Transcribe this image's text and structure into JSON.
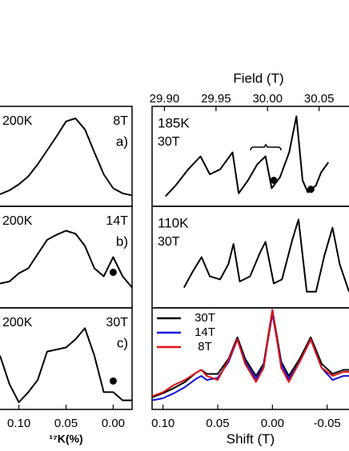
{
  "chart_data": [
    {
      "type": "line",
      "temperature": "200K",
      "field": "8T",
      "label": "a)",
      "color": "#000000",
      "x": [
        0.12,
        0.11,
        0.1,
        0.09,
        0.08,
        0.07,
        0.06,
        0.05,
        0.04,
        0.03,
        0.02,
        0.01,
        0.0,
        -0.01,
        -0.02
      ],
      "values": [
        0.12,
        0.16,
        0.22,
        0.3,
        0.42,
        0.56,
        0.7,
        0.85,
        0.88,
        0.77,
        0.54,
        0.32,
        0.18,
        0.13,
        0.11
      ],
      "xlim": [
        0.12,
        -0.02
      ],
      "ylim": [
        0,
        1
      ]
    },
    {
      "type": "line",
      "temperature": "200K",
      "field": "14T",
      "label": "b)",
      "color": "#000000",
      "x": [
        0.12,
        0.11,
        0.1,
        0.09,
        0.08,
        0.07,
        0.06,
        0.05,
        0.04,
        0.03,
        0.02,
        0.01,
        0.0,
        -0.01,
        -0.02
      ],
      "values": [
        0.24,
        0.26,
        0.34,
        0.39,
        0.53,
        0.67,
        0.72,
        0.76,
        0.73,
        0.61,
        0.39,
        0.31,
        0.5,
        0.31,
        0.2
      ],
      "markers": [
        {
          "x": 0.0,
          "y": 0.35
        }
      ],
      "xlim": [
        0.12,
        -0.02
      ],
      "ylim": [
        0,
        1
      ]
    },
    {
      "type": "line",
      "temperature": "200K",
      "field": "30T",
      "label": "c)",
      "color": "#000000",
      "x": [
        0.12,
        0.11,
        0.1,
        0.09,
        0.08,
        0.07,
        0.06,
        0.05,
        0.04,
        0.03,
        0.02,
        0.01,
        0.0,
        -0.01,
        -0.02
      ],
      "values": [
        0.53,
        0.25,
        0.07,
        0.17,
        0.29,
        0.57,
        0.59,
        0.61,
        0.69,
        0.8,
        0.53,
        0.17,
        0.17,
        0.09,
        0.09
      ],
      "markers": [
        {
          "x": 0.0,
          "y": 0.28
        }
      ],
      "xlim": [
        0.12,
        -0.02
      ],
      "ylim": [
        0,
        1
      ],
      "xticks": [
        {
          "value": 0.1,
          "label": "0.10"
        },
        0.05,
        {
          "value": 0,
          "label": "0.00"
        }
      ],
      "xlabel": "¹⁷K(%)"
    },
    {
      "type": "line",
      "temperature": "185K",
      "field": "30T",
      "color": "#000000",
      "x": [
        29.901,
        29.911,
        29.923,
        29.935,
        29.944,
        29.954,
        29.966,
        29.972,
        29.981,
        29.99,
        29.998,
        30.004,
        30.012,
        30.021,
        30.028,
        30.034,
        30.039,
        30.047,
        30.052,
        30.059
      ],
      "values": [
        0.1,
        0.21,
        0.37,
        0.5,
        0.32,
        0.37,
        0.54,
        0.13,
        0.26,
        0.42,
        0.5,
        0.18,
        0.29,
        0.54,
        0.9,
        0.26,
        0.14,
        0.21,
        0.34,
        0.44
      ],
      "markers": [
        {
          "x": 30.006,
          "y": 0.26
        },
        {
          "x": 30.042,
          "y": 0.17
        }
      ],
      "xlim": [
        29.888,
        30.079
      ],
      "ylim": [
        0,
        1
      ],
      "xticks": [
        {
          "value": 29.9,
          "label": "29.90"
        },
        29.95,
        {
          "value": 30,
          "label": "30.00"
        },
        30.05
      ],
      "xlabel": "Field (T)"
    },
    {
      "type": "line",
      "temperature": "110K",
      "field": "30T",
      "color": "#000000",
      "x": [
        29.919,
        29.927,
        29.936,
        29.944,
        29.954,
        29.962,
        29.967,
        29.973,
        29.983,
        29.993,
        29.998,
        30.006,
        30.014,
        30.024,
        30.03,
        30.038,
        30.047,
        30.055,
        30.063,
        30.07,
        30.079
      ],
      "values": [
        0.2,
        0.35,
        0.5,
        0.31,
        0.28,
        0.43,
        0.63,
        0.26,
        0.31,
        0.55,
        0.65,
        0.24,
        0.28,
        0.67,
        0.87,
        0.16,
        0.16,
        0.51,
        0.79,
        0.43,
        0.16
      ],
      "xlim": [
        29.888,
        30.079
      ],
      "ylim": [
        0,
        1
      ]
    },
    {
      "type": "line",
      "legend": "upper left",
      "x": [
        0.11,
        0.1,
        0.09,
        0.08,
        0.07,
        0.065,
        0.06,
        0.05,
        0.04,
        0.032,
        0.025,
        0.015,
        0.008,
        0.0,
        -0.008,
        -0.015,
        -0.025,
        -0.035,
        -0.045,
        -0.055,
        -0.065,
        -0.07
      ],
      "series": [
        {
          "name": "30T",
          "color": "#000000",
          "values": [
            0.12,
            0.16,
            0.21,
            0.27,
            0.36,
            0.39,
            0.35,
            0.35,
            0.5,
            0.71,
            0.5,
            0.33,
            0.45,
            0.98,
            0.47,
            0.33,
            0.5,
            0.71,
            0.45,
            0.35,
            0.39,
            0.39
          ]
        },
        {
          "name": "14T",
          "color": "#1010e0",
          "values": [
            0.09,
            0.11,
            0.16,
            0.22,
            0.3,
            0.33,
            0.29,
            0.31,
            0.47,
            0.69,
            0.47,
            0.3,
            0.43,
            0.94,
            0.45,
            0.3,
            0.47,
            0.69,
            0.41,
            0.29,
            0.33,
            0.33
          ]
        },
        {
          "name": "8T",
          "color": "#e01010",
          "values": [
            0.13,
            0.17,
            0.24,
            0.29,
            0.36,
            0.39,
            0.33,
            0.29,
            0.49,
            0.69,
            0.45,
            0.27,
            0.41,
            0.98,
            0.41,
            0.27,
            0.47,
            0.69,
            0.41,
            0.33,
            0.37,
            0.37
          ]
        }
      ],
      "xlim": [
        0.11,
        -0.07
      ],
      "ylim": [
        0,
        1
      ],
      "xticks": [
        {
          "value": 0.1,
          "label": "0.10"
        },
        0.05,
        {
          "value": 0,
          "label": "0.00"
        },
        -0.05
      ],
      "xlabel": "Shift (T)"
    }
  ]
}
